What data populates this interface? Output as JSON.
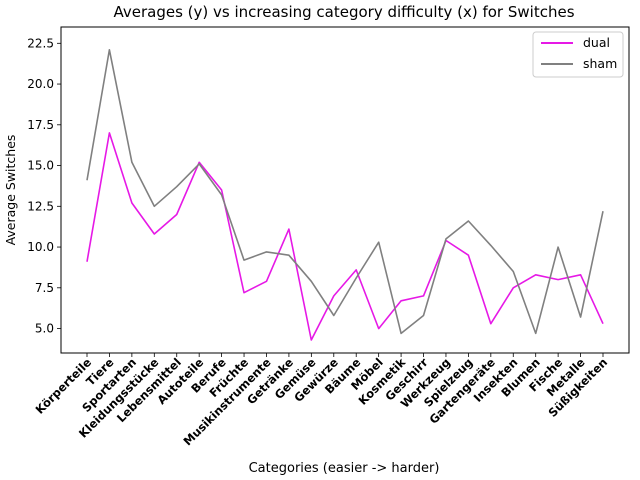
{
  "chart_data": {
    "type": "line",
    "title": "Averages (y) vs increasing category difficulty (x) for Switches",
    "xlabel": "Categories (easier -> harder)",
    "ylabel": "Average Switches",
    "ylim": [
      3.5,
      23.5
    ],
    "yticks": [
      "5.0",
      "7.5",
      "10.0",
      "12.5",
      "15.0",
      "17.5",
      "20.0",
      "22.5"
    ],
    "legend_position": "top-right",
    "grid": false,
    "categories": [
      "Körperteile",
      "Tiere",
      "Sportarten",
      "Kleidungsstücke",
      "Lebensmittel",
      "Autoteile",
      "Berufe",
      "Früchte",
      "Musikinstrumente",
      "Getränke",
      "Gemüse",
      "Gewürze",
      "Bäume",
      "Möbel",
      "Kosmetik",
      "Geschirr",
      "Werkzeug",
      "Spielzeug",
      "Gartengeräte",
      "Insekten",
      "Blumen",
      "Fische",
      "Metalle",
      "Süßigkeiten"
    ],
    "series": [
      {
        "name": "dual",
        "color": "#e619e6",
        "values": [
          9.1,
          17.0,
          12.7,
          10.8,
          12.0,
          15.2,
          13.5,
          7.2,
          7.9,
          11.1,
          4.3,
          7.0,
          8.6,
          5.0,
          6.7,
          7.0,
          10.4,
          9.5,
          5.3,
          7.5,
          8.3,
          8.0,
          8.3,
          5.3
        ]
      },
      {
        "name": "sham",
        "color": "#808080",
        "values": [
          14.1,
          22.1,
          15.2,
          12.5,
          13.7,
          15.1,
          13.2,
          9.2,
          9.7,
          9.5,
          7.9,
          5.8,
          8.1,
          10.3,
          4.7,
          5.8,
          10.5,
          11.6,
          10.1,
          8.5,
          4.7,
          10.0,
          5.7,
          12.2
        ]
      }
    ]
  }
}
